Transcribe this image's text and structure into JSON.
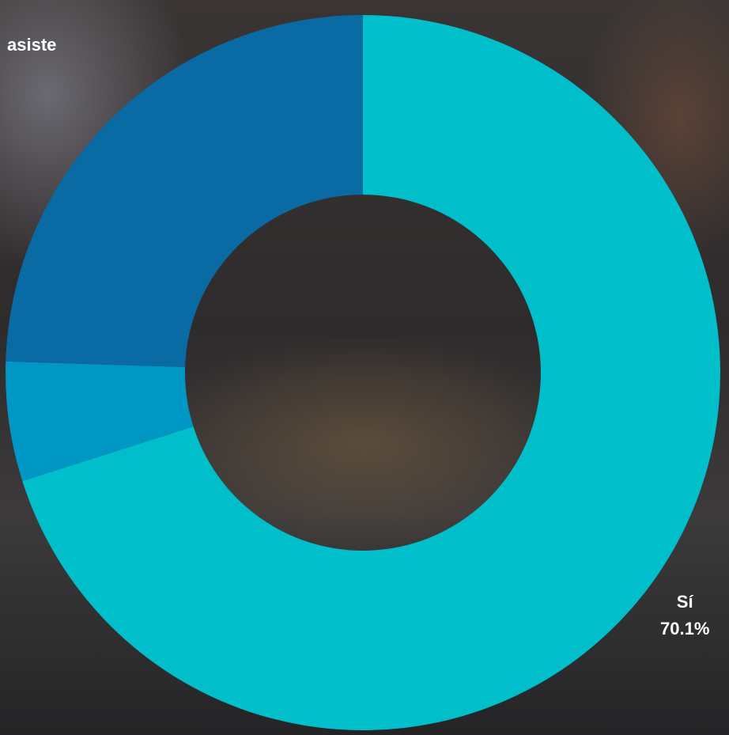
{
  "chart_data": {
    "type": "pie",
    "donut": true,
    "slices": [
      {
        "label": "Sí",
        "value": 70.1,
        "value_label": "70.1%",
        "color": "#00bfcb"
      },
      {
        "label": "",
        "value": 5.4,
        "value_label": "",
        "color": "#0097c4"
      },
      {
        "label": "asiste",
        "value": 24.5,
        "value_label": "",
        "color": "#0a6aa3"
      }
    ]
  }
}
